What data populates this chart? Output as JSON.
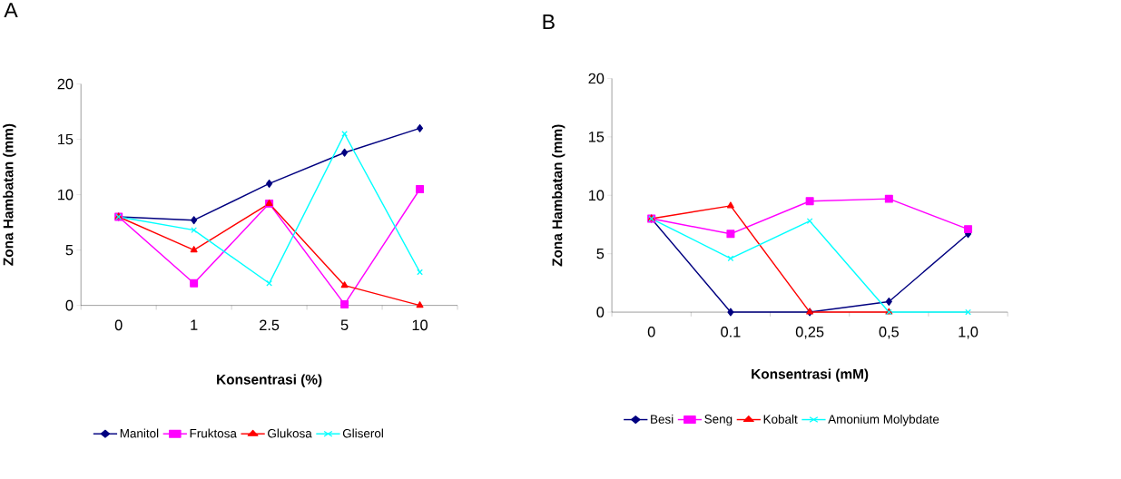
{
  "chart_data": [
    {
      "type": "line",
      "title": "A",
      "xlabel": "Konsentrasi (%)",
      "ylabel": "Zona Hambatan (mm)",
      "categories": [
        "0",
        "1",
        "2.5",
        "5",
        "10"
      ],
      "ylim": [
        0,
        20
      ],
      "yticks": [
        0,
        5,
        10,
        15,
        20
      ],
      "legend": "bottom",
      "grid": false,
      "series": [
        {
          "name": "Manitol",
          "color": "#000080",
          "marker": "diamond",
          "values": [
            8,
            7.7,
            11,
            13.8,
            16
          ]
        },
        {
          "name": "Fruktosa",
          "color": "#ff00ff",
          "marker": "square",
          "values": [
            8,
            2,
            9.2,
            0.1,
            10.5
          ]
        },
        {
          "name": "Glukosa",
          "color": "#ff0000",
          "marker": "triangle",
          "values": [
            8,
            5,
            9.2,
            1.8,
            0
          ]
        },
        {
          "name": "Gliserol",
          "color": "#00ffff",
          "marker": "cross",
          "values": [
            8,
            6.8,
            2,
            15.5,
            3
          ]
        }
      ]
    },
    {
      "type": "line",
      "title": "B",
      "xlabel": "Konsentrasi (mM)",
      "ylabel": "Zona Hambatan  (mm)",
      "categories": [
        "0",
        "0.1",
        "0,25",
        "0,5",
        "1,0"
      ],
      "ylim": [
        0,
        20
      ],
      "yticks": [
        0,
        5,
        10,
        15,
        20
      ],
      "legend": "bottom",
      "grid": false,
      "series": [
        {
          "name": "Besi",
          "color": "#000080",
          "marker": "diamond",
          "values": [
            8,
            0,
            0,
            0.9,
            6.7
          ]
        },
        {
          "name": "Seng",
          "color": "#ff00ff",
          "marker": "square",
          "values": [
            8,
            6.7,
            9.5,
            9.7,
            7.1
          ]
        },
        {
          "name": "Kobalt",
          "color": "#ff0000",
          "marker": "triangle",
          "values": [
            8,
            9.1,
            0,
            0,
            null
          ]
        },
        {
          "name": "Amonium Molybdate",
          "color": "#00ffff",
          "marker": "cross",
          "values": [
            8,
            4.6,
            7.8,
            0,
            0
          ]
        }
      ]
    }
  ]
}
